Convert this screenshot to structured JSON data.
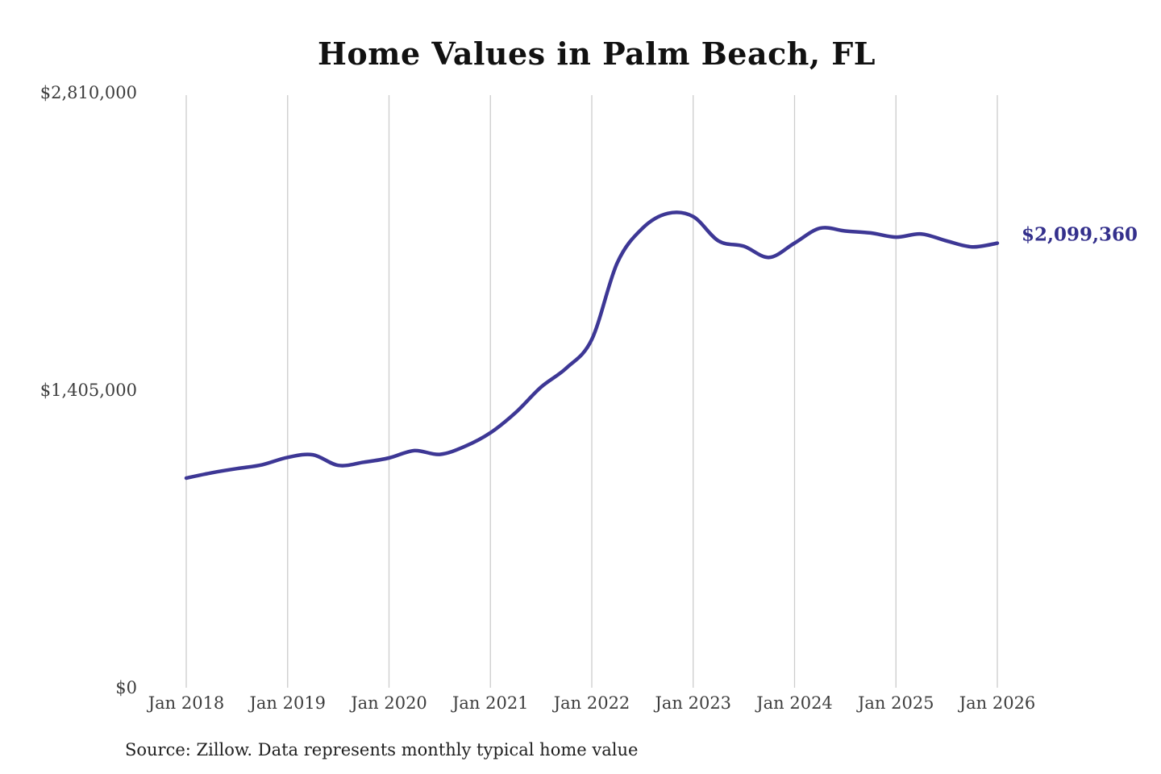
{
  "page": {
    "background": "#ffffff"
  },
  "chart_data": {
    "type": "line",
    "title": "Home Values in Palm Beach, FL",
    "xlabel": "",
    "ylabel": "",
    "grid": "vertical-only",
    "xlim": [
      2018,
      2026
    ],
    "ylim": [
      0,
      2810000
    ],
    "legend": "none",
    "series": [
      {
        "name": "Monthly typical home value",
        "color": "#3d3795",
        "x": [
          2018.0,
          2018.25,
          2018.5,
          2018.75,
          2019.0,
          2019.25,
          2019.5,
          2019.75,
          2020.0,
          2020.25,
          2020.5,
          2020.75,
          2021.0,
          2021.25,
          2021.5,
          2021.75,
          2022.0,
          2022.25,
          2022.5,
          2022.75,
          2023.0,
          2023.25,
          2023.5,
          2023.75,
          2024.0,
          2024.25,
          2024.5,
          2024.75,
          2025.0,
          2025.25,
          2025.5,
          2025.75,
          2026.0
        ],
        "values": [
          990000,
          1015000,
          1035000,
          1053000,
          1088000,
          1100000,
          1050000,
          1065000,
          1085000,
          1120000,
          1102000,
          1140000,
          1204000,
          1300000,
          1420000,
          1510000,
          1645000,
          2005000,
          2170000,
          2240000,
          2225000,
          2110000,
          2085000,
          2032000,
          2100000,
          2170000,
          2157000,
          2148000,
          2128000,
          2143000,
          2110000,
          2082000,
          2099360
        ]
      }
    ],
    "x_ticks": [
      {
        "x": 2018,
        "label": "Jan 2018"
      },
      {
        "x": 2019,
        "label": "Jan 2019"
      },
      {
        "x": 2020,
        "label": "Jan 2020"
      },
      {
        "x": 2021,
        "label": "Jan 2021"
      },
      {
        "x": 2022,
        "label": "Jan 2022"
      },
      {
        "x": 2023,
        "label": "Jan 2023"
      },
      {
        "x": 2024,
        "label": "Jan 2024"
      },
      {
        "x": 2025,
        "label": "Jan 2025"
      },
      {
        "x": 2026,
        "label": "Jan 2026"
      }
    ],
    "y_ticks": [
      {
        "value": 0,
        "label": "$0"
      },
      {
        "value": 1405000,
        "label": "$1,405,000"
      },
      {
        "value": 2810000,
        "label": "$2,810,000"
      }
    ],
    "end_label": "$2,099,360",
    "end_label_color": "#34308c",
    "gridline_color": "#cccccc"
  },
  "footer": {
    "source_note": "Source: Zillow. Data represents monthly typical home value"
  }
}
